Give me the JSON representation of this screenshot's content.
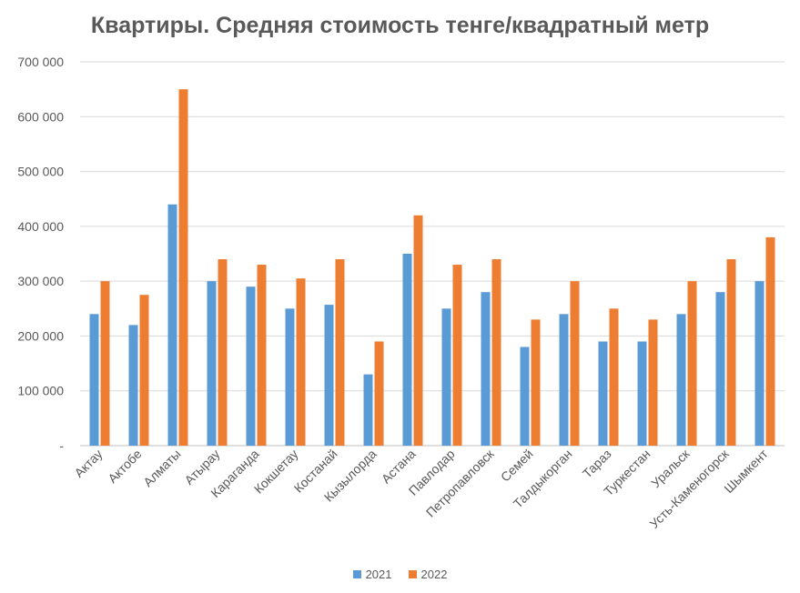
{
  "chart_data": {
    "type": "bar",
    "title": "Квартиры. Средняя стоимость тенге/квадратный метр",
    "xlabel": "",
    "ylabel": "",
    "ylim": [
      0,
      700000
    ],
    "yticks": [
      0,
      100000,
      200000,
      300000,
      400000,
      500000,
      600000,
      700000
    ],
    "ytick_labels": [
      "-",
      "100 000",
      "200 000",
      "300 000",
      "400 000",
      "500 000",
      "600 000",
      "700 000"
    ],
    "grid": true,
    "legend_position": "bottom",
    "categories": [
      "Актау",
      "Актобе",
      "Алматы",
      "Атырау",
      "Караганда",
      "Кокшетау",
      "Костанай",
      "Кызылорда",
      "Астана",
      "Павлодар",
      "Петропавловск",
      "Семей",
      "Талдыкорган",
      "Тараз",
      "Туркестан",
      "Уральск",
      "Усть-Каменогорск",
      "Шымкент"
    ],
    "series": [
      {
        "name": "2021",
        "color": "#5B9BD5",
        "values": [
          240000,
          220000,
          440000,
          300000,
          290000,
          250000,
          257000,
          130000,
          350000,
          250000,
          280000,
          180000,
          240000,
          190000,
          190000,
          240000,
          280000,
          300000
        ]
      },
      {
        "name": "2022",
        "color": "#ED7D31",
        "values": [
          300000,
          275000,
          650000,
          340000,
          330000,
          305000,
          340000,
          190000,
          420000,
          330000,
          340000,
          230000,
          300000,
          250000,
          230000,
          300000,
          340000,
          380000
        ]
      }
    ]
  }
}
